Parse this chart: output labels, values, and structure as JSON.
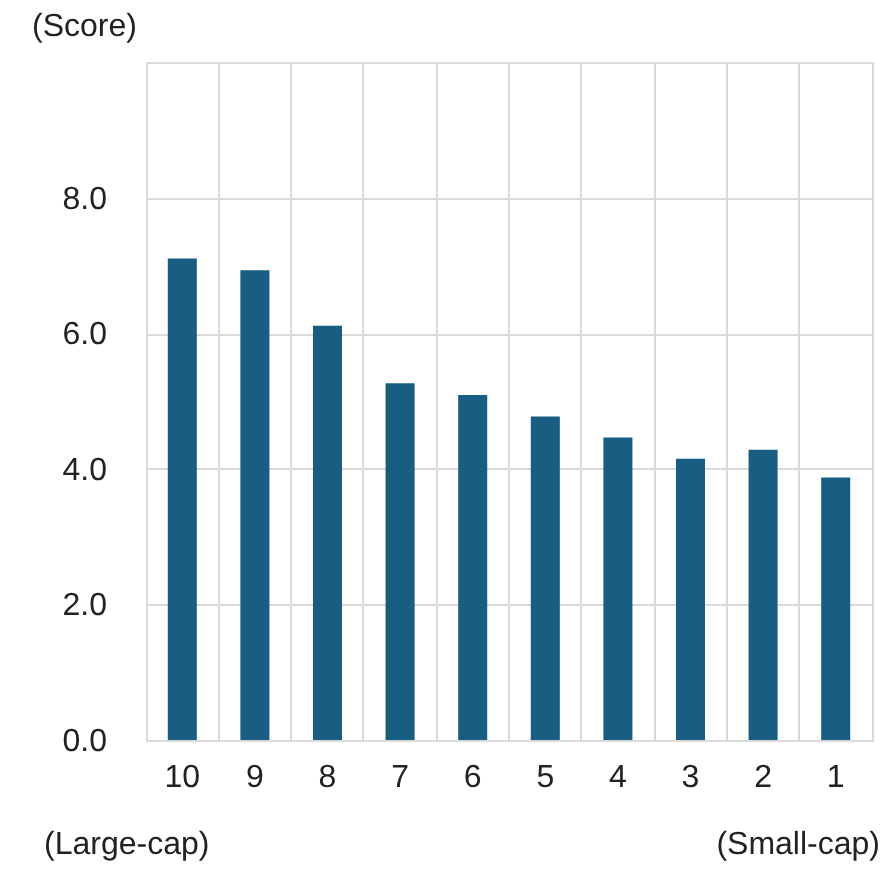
{
  "chart_data": {
    "type": "bar",
    "ylabel": "(Score)",
    "categories": [
      "10",
      "9",
      "8",
      "7",
      "6",
      "5",
      "4",
      "3",
      "2",
      "1"
    ],
    "values": [
      7.1,
      6.93,
      6.11,
      5.26,
      5.09,
      4.77,
      4.46,
      4.15,
      4.28,
      3.87
    ],
    "color": "#175e82",
    "ylim": [
      0,
      10
    ],
    "yticks": [
      {
        "value": 0,
        "label": "0.0"
      },
      {
        "value": 2,
        "label": "2.0"
      },
      {
        "value": 4,
        "label": "4.0"
      },
      {
        "value": 6,
        "label": "6.0"
      },
      {
        "value": 8,
        "label": "8.0"
      },
      {
        "value": 10,
        "label": null
      }
    ],
    "grid": true,
    "annotations": [
      "(Large-cap)",
      "(Small-cap)"
    ]
  }
}
